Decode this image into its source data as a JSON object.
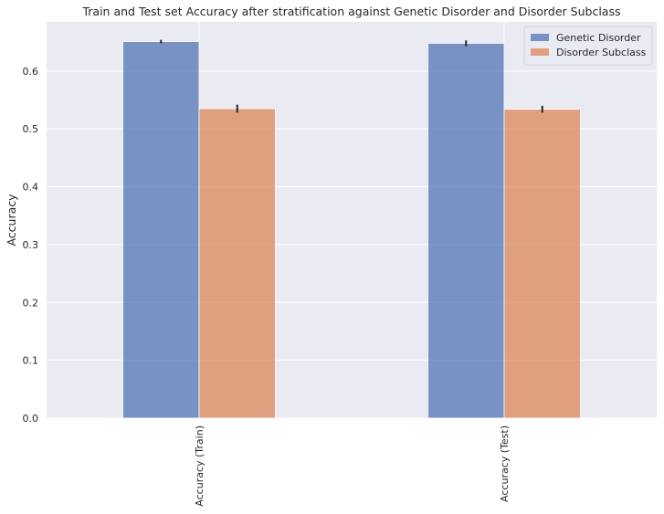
{
  "chart_data": {
    "type": "bar",
    "title": "Train and Test set Accuracy after stratification against Genetic Disorder and Disorder Subclass",
    "xlabel": "",
    "ylabel": "Accuracy",
    "categories": [
      "Accuracy (Train)",
      "Accuracy (Test)"
    ],
    "series": [
      {
        "name": "Genetic Disorder",
        "values": [
          0.651,
          0.648
        ],
        "errors": [
          0.003,
          0.005
        ],
        "color": "#4c72b0"
      },
      {
        "name": "Disorder Subclass",
        "values": [
          0.535,
          0.534
        ],
        "errors": [
          0.007,
          0.006
        ],
        "color": "#dd8452"
      }
    ],
    "ylim": [
      0,
      0.685
    ],
    "yticks": [
      0.0,
      0.1,
      0.2,
      0.3,
      0.4,
      0.5,
      0.6
    ],
    "ytick_labels": [
      "0.0",
      "0.1",
      "0.2",
      "0.3",
      "0.4",
      "0.5",
      "0.6"
    ],
    "grid": true,
    "legend_position": "top-right",
    "background_color": "#eaeaf2",
    "error_bar_color": "#262626"
  }
}
